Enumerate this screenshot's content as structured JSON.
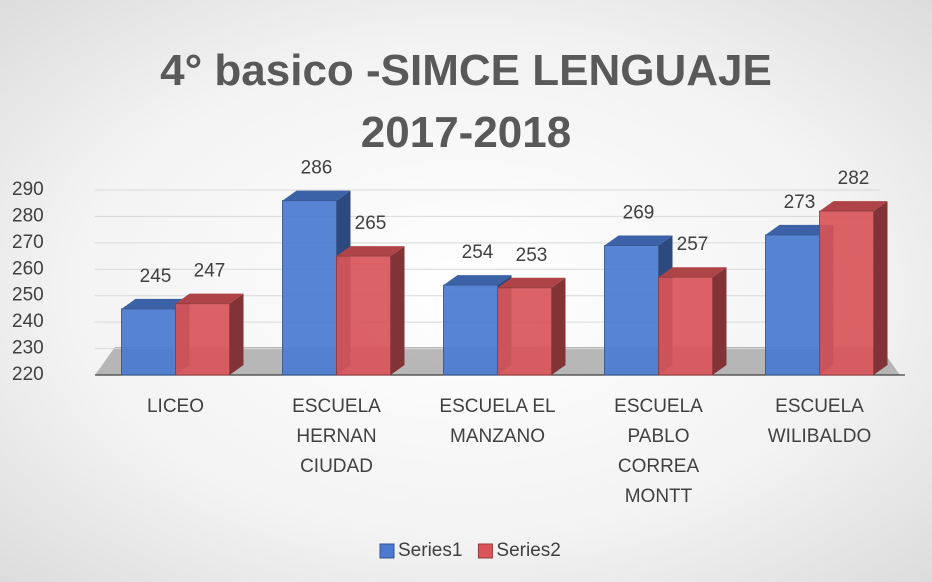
{
  "chart_data": {
    "type": "bar3d",
    "title": "4° basico -SIMCE LENGUAJE 2017-2018",
    "categories": [
      "LICEO",
      "ESCUELA HERNAN CIUDAD",
      "ESCUELA EL MANZANO",
      "ESCUELA PABLO CORREA MONTT",
      "ESCUELA WILIBALDO"
    ],
    "series": [
      {
        "name": "Series1",
        "color": "#4a7bd0",
        "values": [
          245,
          286,
          254,
          269,
          273
        ]
      },
      {
        "name": "Series2",
        "color": "#d9555a",
        "values": [
          247,
          265,
          253,
          257,
          282
        ]
      }
    ],
    "ylim": [
      220,
      290
    ],
    "yticks": [
      220,
      230,
      240,
      250,
      260,
      270,
      280,
      290
    ],
    "grid": true,
    "legend": "bottom"
  }
}
